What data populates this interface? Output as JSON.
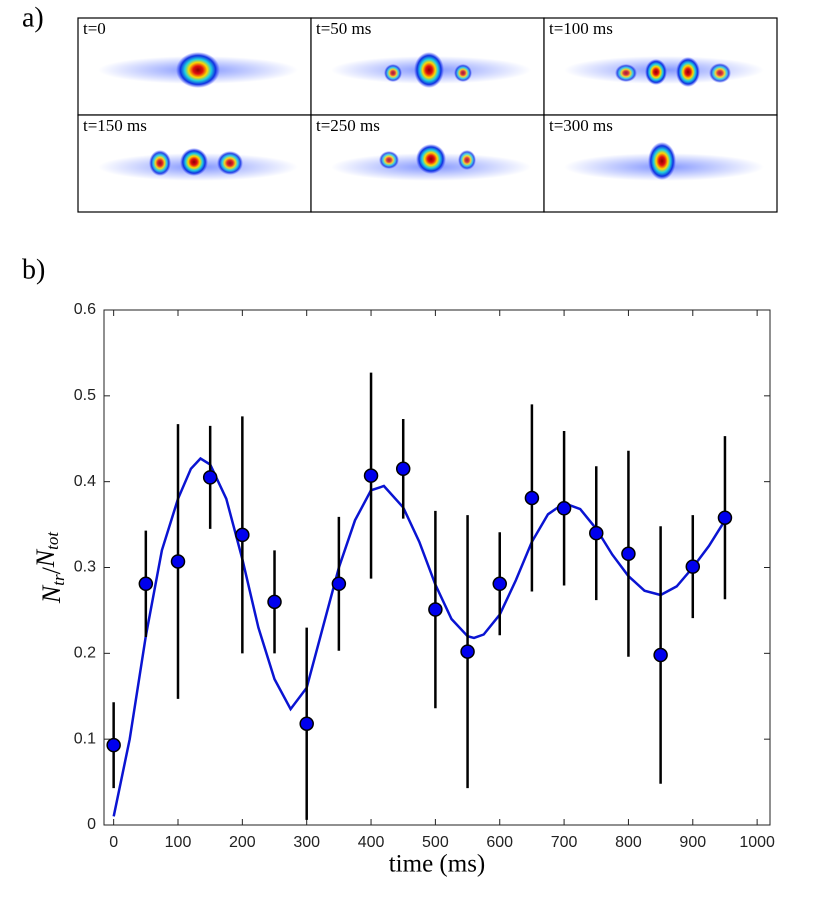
{
  "panel_a": {
    "label": "a)",
    "frames": [
      "t=0",
      "t=50 ms",
      "t=100 ms",
      "t=150 ms",
      "t=250 ms",
      "t=300 ms"
    ]
  },
  "chart_data": {
    "type": "scatter",
    "label": "b)",
    "xlabel": "time (ms)",
    "ylabel_parts": [
      "N",
      "tr",
      "/",
      "N",
      "tot"
    ],
    "xlim": [
      -15,
      1020
    ],
    "ylim": [
      0,
      0.6
    ],
    "xticks": [
      0,
      100,
      200,
      300,
      400,
      500,
      600,
      700,
      800,
      900,
      1000
    ],
    "yticks": [
      0,
      0.1,
      0.2,
      0.3,
      0.4,
      0.5,
      0.6
    ],
    "points": {
      "color": "#0000ee",
      "x": [
        0,
        50,
        100,
        150,
        200,
        250,
        300,
        350,
        400,
        450,
        500,
        550,
        600,
        650,
        700,
        750,
        800,
        850,
        900,
        950
      ],
      "values": [
        0.093,
        0.281,
        0.307,
        0.405,
        0.338,
        0.26,
        0.118,
        0.281,
        0.407,
        0.415,
        0.251,
        0.202,
        0.281,
        0.381,
        0.369,
        0.34,
        0.316,
        0.198,
        0.301,
        0.358
      ],
      "errors": [
        0.05,
        0.062,
        0.16,
        0.06,
        0.138,
        0.06,
        0.112,
        0.078,
        0.12,
        0.058,
        0.115,
        0.159,
        0.06,
        0.109,
        0.09,
        0.078,
        0.12,
        0.15,
        0.06,
        0.095
      ]
    },
    "fit": {
      "color": "#0a14d2",
      "x": [
        0,
        25,
        50,
        75,
        100,
        120,
        135,
        150,
        175,
        200,
        225,
        250,
        275,
        300,
        325,
        350,
        375,
        400,
        420,
        450,
        475,
        500,
        525,
        550,
        560,
        575,
        600,
        625,
        650,
        675,
        700,
        725,
        750,
        775,
        800,
        825,
        850,
        875,
        900,
        925,
        950
      ],
      "values": [
        0.01,
        0.1,
        0.22,
        0.32,
        0.38,
        0.415,
        0.427,
        0.42,
        0.38,
        0.31,
        0.23,
        0.17,
        0.135,
        0.16,
        0.23,
        0.3,
        0.355,
        0.39,
        0.395,
        0.37,
        0.33,
        0.28,
        0.24,
        0.22,
        0.218,
        0.222,
        0.245,
        0.285,
        0.33,
        0.362,
        0.375,
        0.368,
        0.345,
        0.315,
        0.29,
        0.273,
        0.268,
        0.278,
        0.3,
        0.325,
        0.355
      ]
    }
  }
}
